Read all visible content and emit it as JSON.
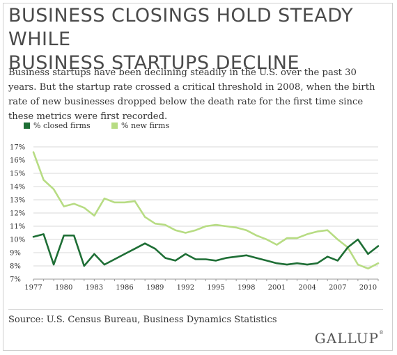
{
  "title_lines": [
    "BUSINESS CLOSINGS HOLD STEADY WHILE",
    "BUSINESS STARTUPS DECLINE"
  ],
  "subtitle": "Business startups have been declining steadily in the U.S. over the past 30 years. But the startup rate crossed a critical threshold in 2008, when the birth rate of new businesses dropped below the death rate for the first time since these metrics were first recorded.",
  "source": "Source: U.S. Census Bureau, Business Dynamics Statistics",
  "logo_text": "GALLUP",
  "logo_mark": "®",
  "chart_data": {
    "type": "line",
    "x": [
      1977,
      1978,
      1979,
      1980,
      1981,
      1982,
      1983,
      1984,
      1985,
      1986,
      1987,
      1988,
      1989,
      1990,
      1991,
      1992,
      1993,
      1994,
      1995,
      1996,
      1997,
      1998,
      1999,
      2000,
      2001,
      2002,
      2003,
      2004,
      2005,
      2006,
      2007,
      2008,
      2009,
      2010,
      2011
    ],
    "series": [
      {
        "name": "% closed firms",
        "color": "#1e6e35",
        "values": [
          10.2,
          10.4,
          8.1,
          10.3,
          10.3,
          8.0,
          8.9,
          8.1,
          8.5,
          8.9,
          9.3,
          9.7,
          9.3,
          8.6,
          8.4,
          8.9,
          8.5,
          8.5,
          8.4,
          8.6,
          8.7,
          8.8,
          8.6,
          8.4,
          8.2,
          8.1,
          8.2,
          8.1,
          8.2,
          8.7,
          8.4,
          9.4,
          10.0,
          8.9,
          9.5
        ]
      },
      {
        "name": "% new firms",
        "color": "#b7dc83",
        "values": [
          16.6,
          14.5,
          13.8,
          12.5,
          12.7,
          12.4,
          11.8,
          13.1,
          12.8,
          12.8,
          12.9,
          11.7,
          11.2,
          11.1,
          10.7,
          10.5,
          10.7,
          11.0,
          11.1,
          11.0,
          10.9,
          10.7,
          10.3,
          10.0,
          9.6,
          10.1,
          10.1,
          10.4,
          10.6,
          10.7,
          10.0,
          9.4,
          8.1,
          7.8,
          8.2
        ]
      }
    ],
    "x_ticks": [
      1977,
      1980,
      1983,
      1986,
      1989,
      1992,
      1995,
      1998,
      2001,
      2004,
      2007,
      2010
    ],
    "y_ticks": [
      "7%",
      "8%",
      "9%",
      "10%",
      "11%",
      "12%",
      "13%",
      "14%",
      "15%",
      "16%",
      "17%"
    ],
    "ylim": [
      7,
      17
    ],
    "xlim": [
      1977,
      2011
    ],
    "grid": true,
    "legend_position": "top-left"
  }
}
